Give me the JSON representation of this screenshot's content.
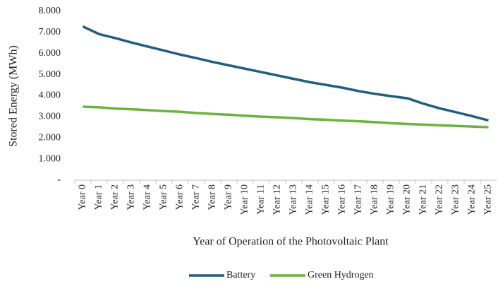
{
  "chart_data": {
    "type": "line",
    "x_label": "Year of Operation of the Photovoltaic Plant",
    "y_label": "Stored Energy (MWh)",
    "categories": [
      "Year 0",
      "Year 1",
      "Year 2",
      "Year 3",
      "Year 4",
      "Year 5",
      "Year 6",
      "Year 7",
      "Year 8",
      "Year 9",
      "Year 10",
      "Year 11",
      "Year 12",
      "Year 13",
      "Year 14",
      "Year 15",
      "Year 16",
      "Year 17",
      "Year 18",
      "Year 19",
      "Year 20",
      "Year 21",
      "Year 22",
      "Year 23",
      "Year 24",
      "Year 25"
    ],
    "series": [
      {
        "name": "Battery",
        "color": "#1f5f7f",
        "values": [
          7.28,
          6.92,
          6.73,
          6.52,
          6.33,
          6.14,
          5.95,
          5.78,
          5.6,
          5.44,
          5.28,
          5.12,
          4.96,
          4.8,
          4.64,
          4.51,
          4.38,
          4.22,
          4.09,
          3.98,
          3.88,
          3.62,
          3.4,
          3.22,
          3.03,
          2.83
        ]
      },
      {
        "name": "Green Hydrogen",
        "color": "#6ab43e",
        "values": [
          3.48,
          3.45,
          3.39,
          3.36,
          3.32,
          3.27,
          3.24,
          3.18,
          3.14,
          3.1,
          3.05,
          3.01,
          2.98,
          2.94,
          2.89,
          2.86,
          2.82,
          2.79,
          2.75,
          2.7,
          2.66,
          2.63,
          2.6,
          2.57,
          2.54,
          2.51
        ]
      }
    ],
    "ylim": [
      0,
      8
    ],
    "yticks": [
      {
        "value": 0,
        "label": "-"
      },
      {
        "value": 1,
        "label": "1.000"
      },
      {
        "value": 2,
        "label": "2.000"
      },
      {
        "value": 3,
        "label": "3.000"
      },
      {
        "value": 4,
        "label": "4.000"
      },
      {
        "value": 5,
        "label": "5.000"
      },
      {
        "value": 6,
        "label": "6.000"
      },
      {
        "value": 7,
        "label": "7.000"
      },
      {
        "value": 8,
        "label": "8.000"
      }
    ],
    "legend": "bottom"
  }
}
